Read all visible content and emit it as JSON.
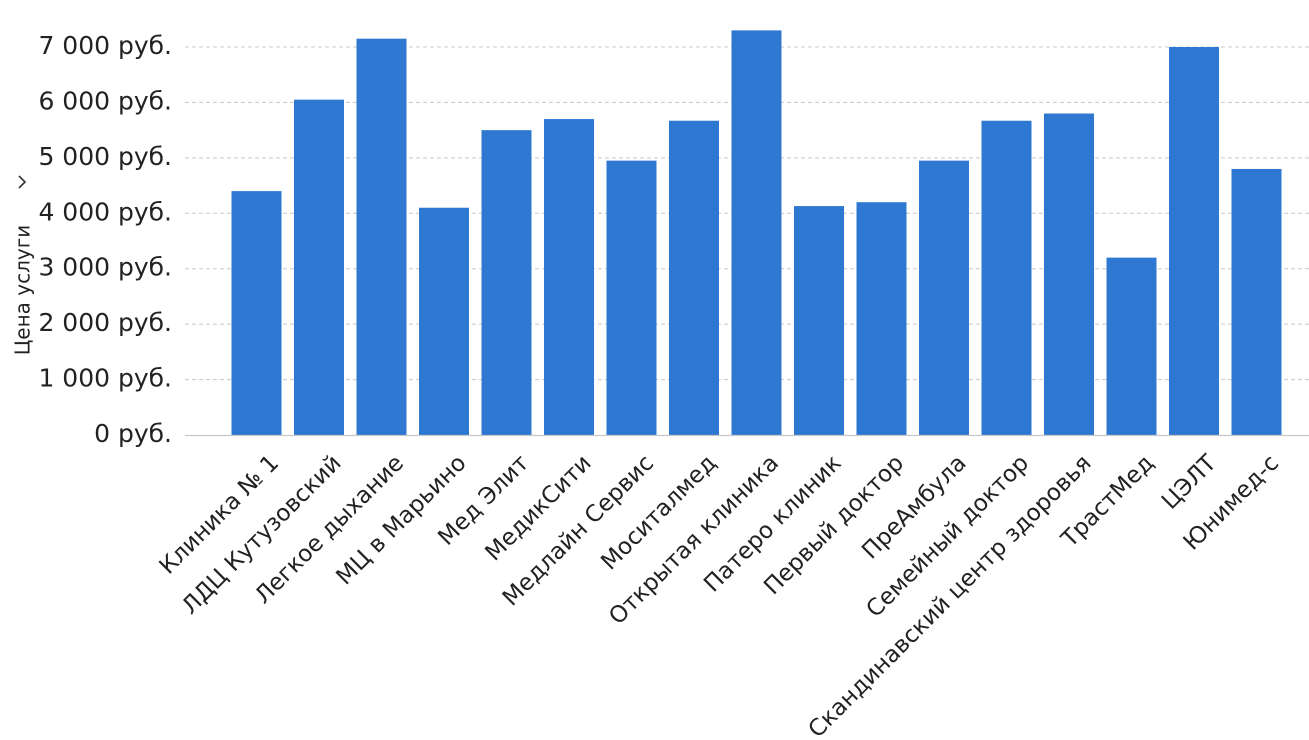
{
  "chart_data": {
    "type": "bar",
    "title": "",
    "xlabel": "",
    "ylabel": "Цена услуги",
    "ylabel_icon": "chevron-down-icon",
    "ylim": [
      0,
      7000
    ],
    "yticks": [
      0,
      1000,
      2000,
      3000,
      4000,
      5000,
      6000,
      7000
    ],
    "ytick_labels": [
      "0 руб.",
      "1 000 руб.",
      "2 000 руб.",
      "3 000 руб.",
      "4 000 руб.",
      "5 000 руб.",
      "6 000 руб.",
      "7 000 руб."
    ],
    "grid": true,
    "bar_color": "#2f78d1",
    "categories": [
      "Клиника № 1",
      "ЛДЦ Кутузовский",
      "Легкое дыхание",
      "МЦ в Марьино",
      "Мед Элит",
      "МедикСити",
      "Медлайн Сервис",
      "Моситалмед",
      "Открытая клиника",
      "Патеро клиник",
      "Первый доктор",
      "ПреАмбула",
      "Семейный доктор",
      "Скандинавский центр здоровья",
      "ТрастМед",
      "ЦЭЛТ",
      "Юнимед-с"
    ],
    "values": [
      4400,
      6050,
      7150,
      4100,
      5500,
      5700,
      4950,
      5670,
      7300,
      4130,
      4200,
      4950,
      5670,
      5800,
      3200,
      7000,
      4800
    ]
  }
}
